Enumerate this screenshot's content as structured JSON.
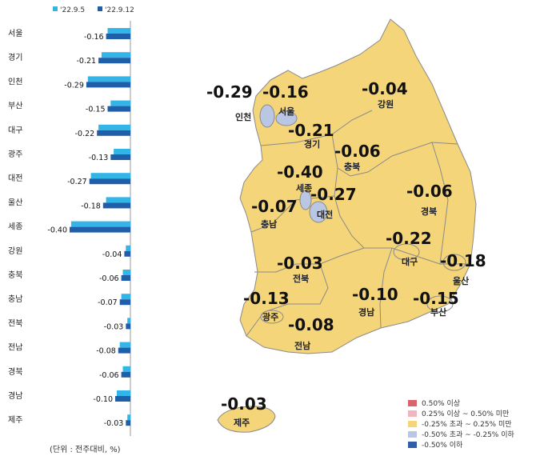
{
  "chart_data": {
    "type": "bar",
    "orientation": "horizontal",
    "categories": [
      "서울",
      "경기",
      "인천",
      "부산",
      "대구",
      "광주",
      "대전",
      "울산",
      "세종",
      "강원",
      "충북",
      "충남",
      "전북",
      "전남",
      "경북",
      "경남",
      "제주"
    ],
    "series": [
      {
        "name": "'22.9.5",
        "color": "#33b5e8",
        "values": [
          -0.15,
          -0.19,
          -0.28,
          -0.13,
          -0.21,
          -0.11,
          -0.26,
          -0.16,
          -0.39,
          -0.03,
          -0.05,
          -0.06,
          -0.02,
          -0.07,
          -0.05,
          -0.09,
          -0.02
        ]
      },
      {
        "name": "'22.9.12",
        "color": "#1f5faa",
        "values": [
          -0.16,
          -0.21,
          -0.29,
          -0.15,
          -0.22,
          -0.13,
          -0.27,
          -0.18,
          -0.4,
          -0.04,
          -0.06,
          -0.07,
          -0.03,
          -0.08,
          -0.06,
          -0.1,
          -0.03
        ]
      }
    ],
    "data_labels": [
      "-0.16",
      "-0.21",
      "-0.29",
      "-0.15",
      "-0.22",
      "-0.13",
      "-0.27",
      "-0.18",
      "-0.40",
      "-0.04",
      "-0.06",
      "-0.07",
      "-0.03",
      "-0.08",
      "-0.06",
      "-0.10",
      "-0.03"
    ],
    "xlim": [
      -0.45,
      0
    ]
  },
  "unit_note": "(단위 : 전주대비, %)",
  "map": {
    "regions": [
      {
        "name": "인천",
        "value": "-0.29"
      },
      {
        "name": "서울",
        "value": "-0.16"
      },
      {
        "name": "강원",
        "value": "-0.04"
      },
      {
        "name": "경기",
        "value": "-0.21"
      },
      {
        "name": "충북",
        "value": "-0.06"
      },
      {
        "name": "세종",
        "value": "-0.40"
      },
      {
        "name": "대전",
        "value": "-0.27"
      },
      {
        "name": "충남",
        "value": "-0.07"
      },
      {
        "name": "경북",
        "value": "-0.06"
      },
      {
        "name": "대구",
        "value": "-0.22"
      },
      {
        "name": "울산",
        "value": "-0.18"
      },
      {
        "name": "전북",
        "value": "-0.03"
      },
      {
        "name": "광주",
        "value": "-0.13"
      },
      {
        "name": "경남",
        "value": "-0.10"
      },
      {
        "name": "부산",
        "value": "-0.15"
      },
      {
        "name": "전남",
        "value": "-0.08"
      },
      {
        "name": "제주",
        "value": "-0.03"
      }
    ],
    "colors": {
      "land": "#f5d57a",
      "city_low": "#b9c6e4",
      "border": "#8a8a8a"
    }
  },
  "legend": [
    {
      "label": "0.50% 이상",
      "color": "#d9646c"
    },
    {
      "label": "0.25% 이상 ~ 0.50% 미만",
      "color": "#f2b5c0"
    },
    {
      "label": "-0.25% 초과 ~ 0.25% 미만",
      "color": "#f5d57a"
    },
    {
      "label": "-0.50% 초과 ~ -0.25% 이하",
      "color": "#b9c6e4"
    },
    {
      "label": "-0.50% 이하",
      "color": "#2f5fa8"
    }
  ]
}
